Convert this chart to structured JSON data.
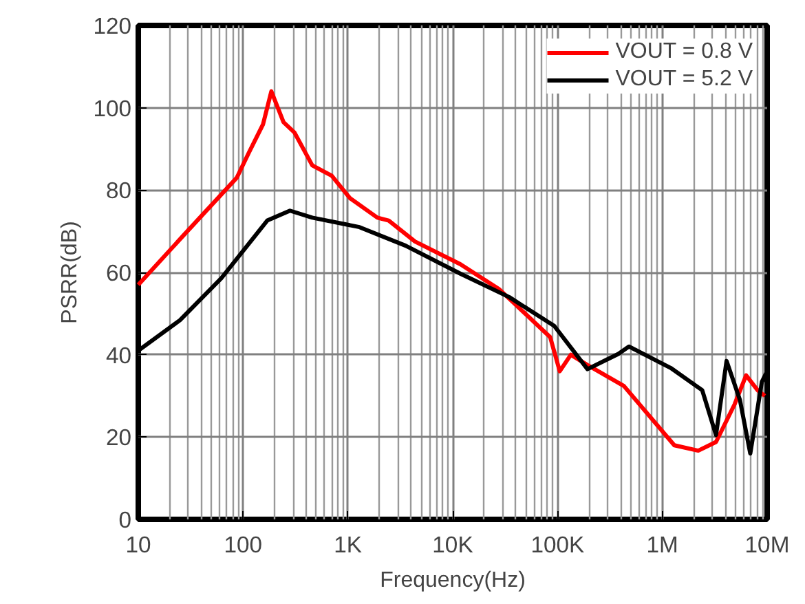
{
  "chart_data": {
    "type": "line",
    "xlabel": "Frequency(Hz)",
    "ylabel": "PSRR(dB)",
    "log": "x",
    "grid": true,
    "legend": "top right",
    "line_style": "solid",
    "marker": "none",
    "xlim": [
      10,
      10000000
    ],
    "ylim": [
      0,
      120
    ],
    "xticks": [
      10,
      100,
      {
        "value": 1000,
        "label": "1K"
      },
      {
        "value": 10000,
        "label": "10K"
      },
      {
        "value": 100000,
        "label": "100K"
      },
      {
        "value": 1000000,
        "label": "1M"
      },
      {
        "value": 10000000,
        "label": "10M"
      }
    ],
    "yticks": [
      0,
      20,
      40,
      60,
      80,
      100,
      120
    ],
    "series": [
      {
        "name": "VOUT = 0.8 V",
        "color": "#ff0000",
        "x": [
          10,
          27,
          87,
          113,
          155,
          186,
          243,
          309,
          457,
          700,
          1050,
          1910,
          2450,
          4370,
          11800,
          27500,
          85000,
          105000,
          134000,
          193000,
          430000,
          1300000,
          2200000,
          3250000,
          4900000,
          6300000,
          8100000,
          9500000
        ],
        "values": [
          57,
          69,
          83,
          89,
          96,
          104,
          96.5,
          94,
          86,
          83.5,
          78,
          73.3,
          72.6,
          67.5,
          62,
          56,
          44.3,
          36,
          40,
          37.5,
          32.4,
          18,
          16.7,
          18.8,
          28,
          35,
          31.4,
          30
        ]
      },
      {
        "name": "VOUT = 5.2 V",
        "color": "#000000",
        "x": [
          10,
          25,
          62,
          170,
          280,
          457,
          1290,
          3550,
          11800,
          34600,
          93000,
          193000,
          316000,
          380000,
          480000,
          1200000,
          2400000,
          3250000,
          4100000,
          5500000,
          6900000,
          8900000,
          10000000
        ],
        "values": [
          41,
          48.4,
          58.6,
          72.6,
          75,
          73.3,
          71,
          66.5,
          59.7,
          54,
          47,
          36.5,
          39.2,
          40.2,
          42,
          36.8,
          31.4,
          20.5,
          38.5,
          29,
          16,
          33.4,
          36
        ]
      }
    ]
  }
}
